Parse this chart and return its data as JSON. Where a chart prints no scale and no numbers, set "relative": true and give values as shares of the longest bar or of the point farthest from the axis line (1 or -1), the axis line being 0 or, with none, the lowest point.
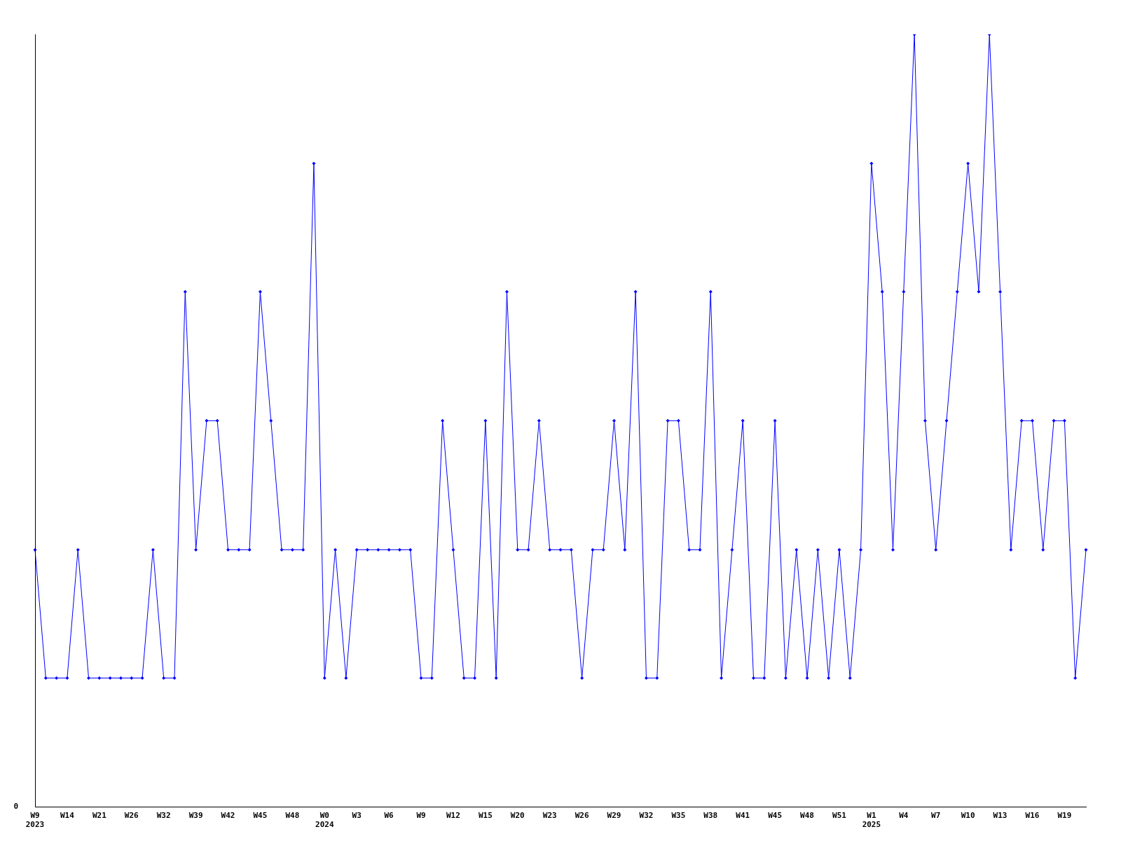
{
  "chart_data": {
    "type": "line",
    "relative": true,
    "marker": "diamond",
    "grid": false,
    "legend": false,
    "annotations": [
      "0"
    ],
    "categories": [
      "W9\n2023",
      null,
      null,
      "W14",
      null,
      null,
      "W21",
      null,
      null,
      "W26",
      null,
      null,
      "W32",
      null,
      null,
      "W39",
      null,
      null,
      "W42",
      null,
      null,
      "W45",
      null,
      null,
      "W48",
      null,
      null,
      "W0\n2024",
      null,
      null,
      "W3",
      null,
      null,
      "W6",
      null,
      null,
      "W9",
      null,
      null,
      "W12",
      null,
      null,
      "W15",
      null,
      null,
      "W20",
      null,
      null,
      "W23",
      null,
      null,
      "W26",
      null,
      null,
      "W29",
      null,
      null,
      "W32",
      null,
      null,
      "W35",
      null,
      null,
      "W38",
      null,
      null,
      "W41",
      null,
      null,
      "W45",
      null,
      null,
      "W48",
      null,
      null,
      "W51",
      null,
      null,
      "W1\n2025",
      null,
      null,
      "W4",
      null,
      null,
      "W7",
      null,
      null,
      "W10",
      null,
      null,
      "W13",
      null,
      null,
      "W16",
      null,
      null,
      "W19",
      null,
      null
    ],
    "series": [
      {
        "color": "#0000ff",
        "values": [
          0.333,
          0.167,
          0.167,
          0.167,
          0.333,
          0.167,
          0.167,
          0.167,
          0.167,
          0.167,
          0.167,
          0.333,
          0.167,
          0.167,
          0.667,
          0.333,
          0.5,
          0.5,
          0.333,
          0.333,
          0.333,
          0.667,
          0.5,
          0.333,
          0.333,
          0.333,
          0.833,
          0.167,
          0.333,
          0.167,
          0.333,
          0.333,
          0.333,
          0.333,
          0.333,
          0.333,
          0.167,
          0.167,
          0.5,
          0.333,
          0.167,
          0.167,
          0.5,
          0.167,
          0.667,
          0.333,
          0.333,
          0.5,
          0.333,
          0.333,
          0.333,
          0.167,
          0.333,
          0.333,
          0.5,
          0.333,
          0.667,
          0.167,
          0.167,
          0.5,
          0.5,
          0.333,
          0.333,
          0.667,
          0.167,
          0.333,
          0.5,
          0.167,
          0.167,
          0.5,
          0.167,
          0.333,
          0.167,
          0.333,
          0.167,
          0.333,
          0.167,
          0.333,
          0.833,
          0.667,
          0.333,
          0.667,
          1,
          0.5,
          0.333,
          0.5,
          0.667,
          0.833,
          0.667,
          1,
          0.667,
          0.333,
          0.5,
          0.5,
          0.333,
          0.5,
          0.5,
          0.167,
          0.333
        ]
      }
    ]
  }
}
